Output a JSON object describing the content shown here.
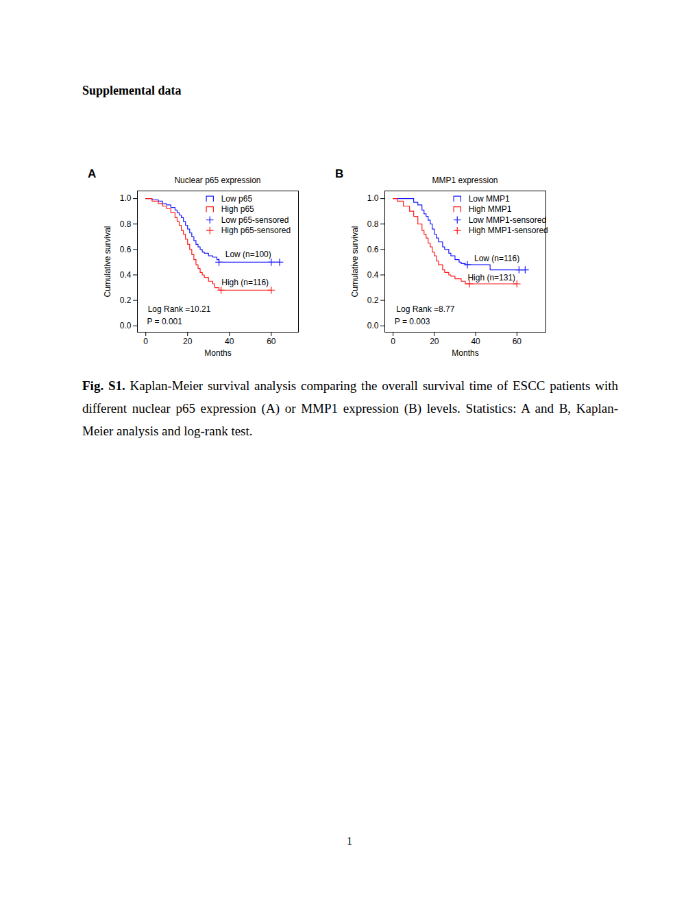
{
  "document": {
    "heading": "Supplemental data",
    "caption_label": "Fig. S1.",
    "caption_text": "Kaplan-Meier survival analysis comparing the overall survival time of ESCC patients with different nuclear p65 expression (A) or MMP1 expression (B) levels. Statistics: A and B, Kaplan-Meier analysis and log-rank test.",
    "page_number": "1"
  },
  "chart_data": [
    {
      "type": "line",
      "panel_label": "A",
      "title": "Nuclear p65 expression",
      "xlabel": "Months",
      "ylabel": "Cumulative survival",
      "xlim": [
        -4,
        73
      ],
      "ylim": [
        -0.05,
        1.06
      ],
      "xticks": [
        0,
        20,
        40,
        60
      ],
      "yticks": [
        {
          "value": 0,
          "label": "0.0"
        },
        0.2,
        0.4,
        0.6,
        0.8,
        {
          "value": 1,
          "label": "1.0"
        }
      ],
      "legend": "top-right",
      "series": [
        {
          "name": "Low p65",
          "color": "#1a1aff",
          "type": "line",
          "line_style": "step",
          "x": [
            0,
            3,
            6,
            8,
            10,
            12,
            14,
            15,
            16,
            17,
            18,
            19,
            20,
            21,
            22,
            23,
            24,
            25,
            26,
            27,
            28,
            30,
            32,
            34,
            35,
            64
          ],
          "values": [
            1,
            0.99,
            0.98,
            0.96,
            0.95,
            0.93,
            0.91,
            0.89,
            0.87,
            0.85,
            0.82,
            0.79,
            0.76,
            0.73,
            0.7,
            0.67,
            0.64,
            0.62,
            0.6,
            0.58,
            0.57,
            0.55,
            0.54,
            0.52,
            0.5,
            0.5
          ]
        },
        {
          "name": "High p65",
          "color": "#ff1a1a",
          "type": "line",
          "line_style": "step",
          "x": [
            0,
            3,
            6,
            8,
            10,
            12,
            14,
            15,
            16,
            17,
            18,
            19,
            20,
            21,
            22,
            23,
            24,
            25,
            26,
            27,
            28,
            30,
            32,
            33,
            35,
            60
          ],
          "values": [
            1,
            0.98,
            0.96,
            0.94,
            0.92,
            0.89,
            0.85,
            0.82,
            0.79,
            0.75,
            0.72,
            0.68,
            0.64,
            0.6,
            0.56,
            0.52,
            0.48,
            0.45,
            0.42,
            0.4,
            0.38,
            0.35,
            0.33,
            0.3,
            0.28,
            0.28
          ]
        },
        {
          "name": "Low p65-sensored",
          "color": "#1a1aff",
          "type": "scatter",
          "marker": "plus",
          "x": [
            35,
            60,
            64
          ],
          "values": [
            0.5,
            0.5,
            0.5
          ]
        },
        {
          "name": "High p65-sensored",
          "color": "#ff1a1a",
          "type": "scatter",
          "marker": "plus",
          "x": [
            36,
            60
          ],
          "values": [
            0.28,
            0.28
          ]
        }
      ],
      "annotations": [
        {
          "text": "Low (n=100)",
          "x": 49,
          "y": 0.56
        },
        {
          "text": "High (n=116)",
          "x": 47.5,
          "y": 0.34
        },
        {
          "text": "Log Rank =10.21",
          "x": 16,
          "y": 0.13
        },
        {
          "text": "P = 0.001",
          "x": 9,
          "y": 0.03
        }
      ]
    },
    {
      "type": "line",
      "panel_label": "B",
      "title": "MMP1 expression",
      "xlabel": "Months",
      "ylabel": "Cumulative survival",
      "xlim": [
        -4,
        74
      ],
      "ylim": [
        -0.05,
        1.06
      ],
      "xticks": [
        0,
        20,
        40,
        60
      ],
      "yticks": [
        {
          "value": 0,
          "label": "0.0"
        },
        0.2,
        0.4,
        0.6,
        0.8,
        {
          "value": 1,
          "label": "1.0"
        }
      ],
      "legend": "top-right",
      "series": [
        {
          "name": "Low MMP1",
          "color": "#1a1aff",
          "type": "line",
          "line_style": "step",
          "x": [
            0,
            10,
            12,
            14,
            15,
            16,
            17,
            18,
            19,
            20,
            21,
            22,
            24,
            25,
            27,
            28,
            30,
            32,
            33,
            35,
            47,
            64
          ],
          "values": [
            1,
            0.97,
            0.95,
            0.91,
            0.88,
            0.86,
            0.83,
            0.8,
            0.76,
            0.72,
            0.69,
            0.66,
            0.62,
            0.6,
            0.57,
            0.55,
            0.52,
            0.5,
            0.49,
            0.48,
            0.44,
            0.44
          ]
        },
        {
          "name": "High MMP1",
          "color": "#ff1a1a",
          "type": "line",
          "line_style": "step",
          "x": [
            0,
            2,
            5,
            8,
            10,
            12,
            14,
            15,
            16,
            17,
            18,
            19,
            20,
            21,
            22,
            24,
            25,
            27,
            28,
            30,
            33,
            35,
            60
          ],
          "values": [
            1,
            0.98,
            0.94,
            0.9,
            0.86,
            0.8,
            0.75,
            0.72,
            0.69,
            0.65,
            0.62,
            0.58,
            0.55,
            0.51,
            0.48,
            0.44,
            0.42,
            0.4,
            0.39,
            0.37,
            0.35,
            0.33,
            0.33
          ]
        },
        {
          "name": "Low MMP1-sensored",
          "color": "#1a1aff",
          "type": "scatter",
          "marker": "plus",
          "x": [
            36,
            61,
            64
          ],
          "values": [
            0.48,
            0.44,
            0.44
          ]
        },
        {
          "name": "High MMP1-sensored",
          "color": "#ff1a1a",
          "type": "scatter",
          "marker": "plus",
          "x": [
            37,
            60
          ],
          "values": [
            0.33,
            0.33
          ]
        }
      ],
      "annotations": [
        {
          "text": "Low (n=116)",
          "x": 50.3,
          "y": 0.53
        },
        {
          "text": "High (n=131)",
          "x": 47.7,
          "y": 0.38
        },
        {
          "text": "Log Rank =8.77",
          "x": 15.7,
          "y": 0.13
        },
        {
          "text": "P = 0.003",
          "x": 9.3,
          "y": 0.03
        }
      ]
    }
  ]
}
